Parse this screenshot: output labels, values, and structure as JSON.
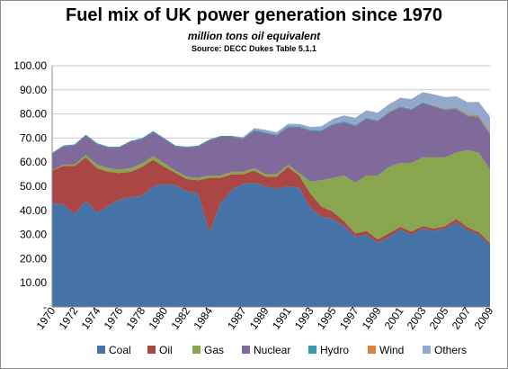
{
  "chart_data": {
    "type": "area",
    "stacked": true,
    "title": "Fuel mix of UK power generation since 1970",
    "subtitle": "million tons oil equivalent",
    "source": "Source: DECC Dukes Table 5.1.1",
    "ylim": [
      0,
      100
    ],
    "ytick_labels": [
      "-",
      "10.00",
      "20.00",
      "30.00",
      "40.00",
      "50.00",
      "60.00",
      "70.00",
      "80.00",
      "90.00",
      "100.00"
    ],
    "xtick_labels": [
      "1970",
      "1972",
      "1974",
      "1976",
      "1978",
      "1980",
      "1982",
      "1984",
      "1987",
      "1989",
      "1991",
      "1993",
      "1995",
      "1997",
      "1999",
      "2001",
      "2003",
      "2005",
      "2007",
      "2009"
    ],
    "grid": true,
    "legend_position": "bottom",
    "x": [
      1970,
      1971,
      1972,
      1973,
      1974,
      1975,
      1976,
      1977,
      1978,
      1979,
      1980,
      1981,
      1982,
      1983,
      1984,
      1985,
      1986,
      1987,
      1988,
      1989,
      1990,
      1991,
      1992,
      1993,
      1994,
      1995,
      1996,
      1997,
      1998,
      1999,
      2000,
      2001,
      2002,
      2003,
      2004,
      2005,
      2006,
      2007,
      2008,
      2009
    ],
    "series": [
      {
        "name": "Coal",
        "color": "#4572a7",
        "values": [
          43,
          42.5,
          38.5,
          44,
          39,
          42,
          44.5,
          45.5,
          46,
          50,
          51,
          50.5,
          48,
          47,
          31,
          43,
          48.5,
          51,
          51.5,
          50,
          49,
          50,
          49.5,
          41,
          37.5,
          36.5,
          33.5,
          29,
          30,
          26.5,
          29,
          32,
          30,
          32.5,
          31.5,
          32.5,
          35,
          32,
          30,
          25.5
        ]
      },
      {
        "name": "Oil",
        "color": "#aa4643",
        "values": [
          13.5,
          16,
          20,
          18,
          18.5,
          14,
          11,
          10.5,
          12,
          11,
          7,
          5,
          5,
          5.5,
          22.5,
          10.5,
          6.5,
          4,
          5,
          4,
          5,
          8,
          5,
          6,
          4,
          3,
          2,
          1.5,
          1.5,
          1.5,
          1.5,
          1.2,
          1.2,
          1,
          1,
          1,
          1.5,
          1,
          1,
          1
        ]
      },
      {
        "name": "Gas",
        "color": "#89a54e",
        "values": [
          0,
          0.5,
          0.5,
          1,
          1.5,
          1.5,
          1.5,
          1.5,
          1.5,
          1.5,
          1.5,
          1,
          1,
          1,
          1,
          1,
          1,
          1,
          1,
          1,
          1,
          1,
          1,
          5,
          11,
          14,
          19,
          21,
          23,
          26.5,
          27.5,
          26.5,
          28.5,
          28.5,
          29.5,
          28.5,
          27.5,
          32,
          33,
          30.5
        ]
      },
      {
        "name": "Nuclear",
        "color": "#80699b",
        "values": [
          7,
          7.5,
          8,
          8,
          8.5,
          8.5,
          9,
          11,
          10,
          10,
          10,
          10,
          12,
          13,
          14.5,
          16,
          14.5,
          13.5,
          15.5,
          17,
          16,
          15.5,
          19,
          21,
          20.5,
          22,
          22,
          23.5,
          23.5,
          22.5,
          22.5,
          23,
          22,
          22.5,
          21,
          19.5,
          18,
          14,
          14.5,
          14.5
        ]
      },
      {
        "name": "Hydro",
        "color": "#3d96ae",
        "values": [
          0.4,
          0.4,
          0.4,
          0.4,
          0.4,
          0.4,
          0.4,
          0.4,
          0.4,
          0.4,
          0.4,
          0.4,
          0.4,
          0.4,
          0.4,
          0.4,
          0.4,
          0.4,
          0.4,
          0.4,
          0.4,
          0.4,
          0.4,
          0.4,
          0.4,
          0.4,
          0.4,
          0.4,
          0.4,
          0.4,
          0.4,
          0.4,
          0.4,
          0.4,
          0.4,
          0.4,
          0.4,
          0.4,
          0.4,
          0.4
        ]
      },
      {
        "name": "Wind",
        "color": "#db843d",
        "values": [
          0,
          0,
          0,
          0,
          0,
          0,
          0,
          0,
          0,
          0,
          0,
          0,
          0,
          0,
          0,
          0,
          0,
          0,
          0,
          0,
          0,
          0,
          0,
          0,
          0,
          0,
          0,
          0,
          0.1,
          0.1,
          0.1,
          0.1,
          0.1,
          0.1,
          0.2,
          0.3,
          0.4,
          0.5,
          0.6,
          0.8
        ]
      },
      {
        "name": "Others",
        "color": "#92a8cd",
        "values": [
          0,
          0,
          0,
          0,
          0,
          0,
          0,
          0,
          0,
          0,
          0,
          0,
          0,
          0,
          0,
          0,
          0,
          0.5,
          0.7,
          1,
          1,
          1,
          1,
          1.2,
          1.5,
          2,
          2.5,
          3,
          3,
          3,
          3,
          3.5,
          4,
          4,
          4.5,
          4.8,
          4.5,
          5,
          5.5,
          6
        ]
      }
    ]
  }
}
